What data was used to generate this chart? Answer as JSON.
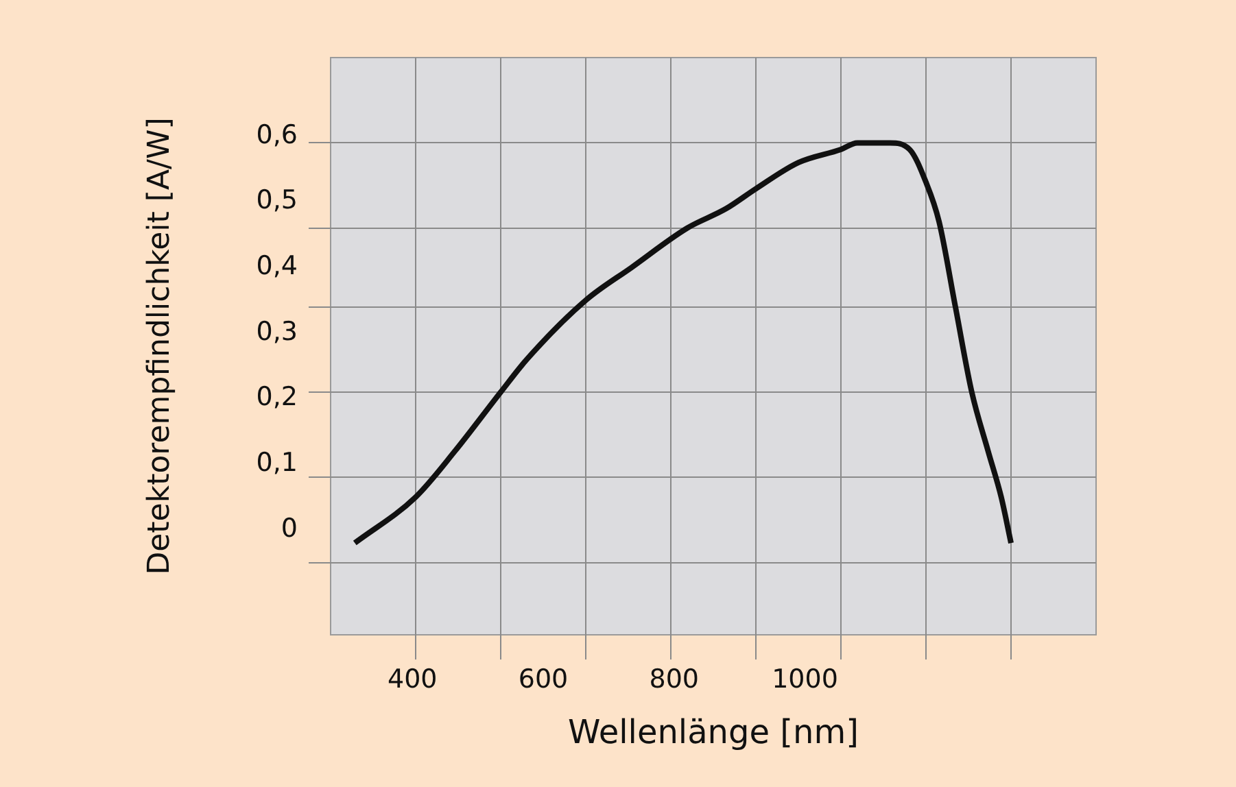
{
  "chart_data": {
    "type": "line",
    "xlabel": "Wellenlänge [nm]",
    "ylabel": "Detektorempfindlichkeit [A/W]",
    "x": [
      312,
      405,
      465,
      535,
      575,
      665,
      735,
      820,
      880,
      925,
      990,
      1055,
      1080,
      1130,
      1160,
      1185,
      1205,
      1230,
      1255,
      1280,
      1300,
      1315
    ],
    "series": [
      {
        "color": "#111111",
        "values": [
          -0.02,
          0.05,
          0.12,
          0.21,
          0.26,
          0.35,
          0.4,
          0.46,
          0.49,
          0.52,
          0.56,
          0.58,
          0.59,
          0.59,
          0.58,
          0.53,
          0.47,
          0.34,
          0.21,
          0.12,
          0.05,
          -0.02
        ]
      }
    ],
    "xlim": [
      275,
      1445
    ],
    "xticks": [
      {
        "value": 405,
        "label": null
      },
      400,
      {
        "value": 535,
        "label": null
      },
      600,
      {
        "value": 665,
        "label": null
      },
      {
        "value": 795,
        "label": null
      },
      800,
      {
        "value": 925,
        "label": null
      },
      1000,
      {
        "value": 1055,
        "label": null
      },
      {
        "value": 1185,
        "label": null
      },
      {
        "value": 1315,
        "label": null
      }
    ],
    "ylim": [
      -0.16,
      0.72
    ],
    "yticks": [
      {
        "value": -0.05,
        "label": null
      },
      {
        "value": 0,
        "label": "0"
      },
      {
        "value": 0.08,
        "label": null
      },
      {
        "value": 0.1,
        "label": "0,1"
      },
      {
        "value": 0.2,
        "label": "0,2"
      },
      {
        "value": 0.21,
        "label": null
      },
      {
        "value": 0.3,
        "label": "0,3"
      },
      {
        "value": 0.34,
        "label": null
      },
      {
        "value": 0.4,
        "label": "0,4"
      },
      {
        "value": 0.46,
        "label": null
      },
      {
        "value": 0.5,
        "label": "0,5"
      },
      {
        "value": 0.59,
        "label": null
      },
      {
        "value": 0.6,
        "label": "0,6"
      }
    ],
    "grid": true,
    "legend": false,
    "marker": "none",
    "line_style": "solid"
  }
}
